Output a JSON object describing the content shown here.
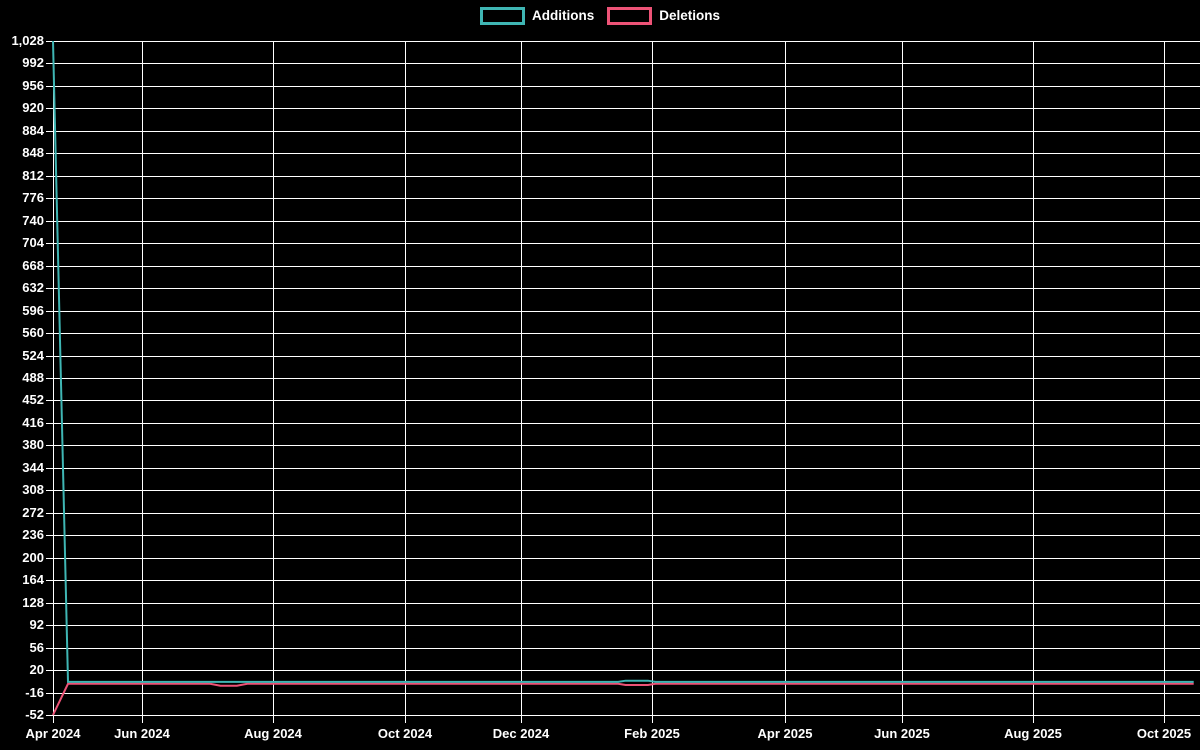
{
  "page": {
    "background": "#000000",
    "text_color": "#ffffff",
    "grid_color": "#ffffff"
  },
  "legend": {
    "items": [
      {
        "label": "Additions",
        "color": "#3fb6b4"
      },
      {
        "label": "Deletions",
        "color": "#ee5377"
      }
    ]
  },
  "chart_data": {
    "type": "line",
    "title": "",
    "legend_position": "top-center",
    "grid": true,
    "background": "#000000",
    "x_axis": {
      "unit": "weeks (first data week ≈ late Apr 2024, one point per week)",
      "tick_labels": [
        "Apr 2024",
        "Jun 2024",
        "Aug 2024",
        "Oct 2024",
        "Dec 2024",
        "Feb 2025",
        "Apr 2025",
        "Jun 2025",
        "Aug 2025",
        "Oct 2025"
      ],
      "range_weeks": [
        0,
        76.3
      ]
    },
    "y_axis": {
      "min": -52,
      "max": 1028,
      "step": 36,
      "tick_format": "thousands-comma"
    },
    "series": [
      {
        "name": "Additions",
        "color": "#3fb6b4",
        "points_week_value": [
          [
            0,
            1028
          ],
          [
            1,
            1
          ],
          [
            37.8,
            1
          ],
          [
            38.3,
            3
          ],
          [
            39.8,
            3
          ],
          [
            40.3,
            1
          ],
          [
            76.3,
            1
          ]
        ]
      },
      {
        "name": "Deletions",
        "color": "#ee5377",
        "points_week_value": [
          [
            0,
            -52
          ],
          [
            1,
            -2
          ],
          [
            10.5,
            -2
          ],
          [
            11.2,
            -5
          ],
          [
            12.3,
            -5
          ],
          [
            13,
            -2
          ],
          [
            37.8,
            -2
          ],
          [
            38.3,
            -4
          ],
          [
            39.8,
            -4
          ],
          [
            40.3,
            -2
          ],
          [
            76.3,
            -2
          ]
        ]
      }
    ]
  }
}
